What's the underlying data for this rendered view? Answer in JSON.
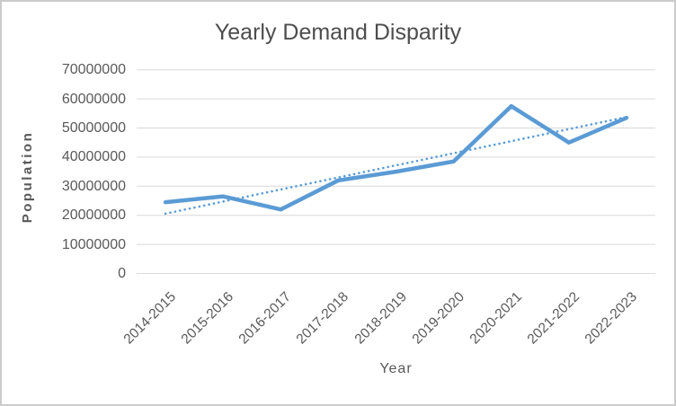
{
  "chart_data": {
    "type": "line",
    "title": "Yearly Demand Disparity",
    "xlabel": "Year",
    "ylabel": "Population",
    "categories": [
      "2014-2015",
      "2015-2016",
      "2016-2017",
      "2017-2018",
      "2018-2019",
      "2019-2020",
      "2020-2021",
      "2021-2022",
      "2022-2023"
    ],
    "series": [
      {
        "name": "Population",
        "values": [
          24500000,
          26500000,
          22000000,
          32000000,
          35000000,
          38500000,
          57500000,
          45000000,
          53500000
        ],
        "color": "#5B9BD5",
        "style": "solid"
      }
    ],
    "trendline": {
      "type": "linear",
      "of_series": "Population",
      "style": "dotted",
      "color": "#5B9BD5"
    },
    "ylim": [
      0,
      70000000
    ],
    "y_ticks": [
      0,
      10000000,
      20000000,
      30000000,
      40000000,
      50000000,
      60000000,
      70000000
    ],
    "y_tick_labels": [
      "0",
      "10000000",
      "20000000",
      "30000000",
      "40000000",
      "50000000",
      "60000000",
      "70000000"
    ],
    "grid": "horizontal",
    "legend": "none",
    "colors": {
      "gridline": "#D9D9D9",
      "tick_text": "#595959",
      "title_text": "#4d4d4d",
      "frame_border": "#cbcbcb"
    }
  }
}
